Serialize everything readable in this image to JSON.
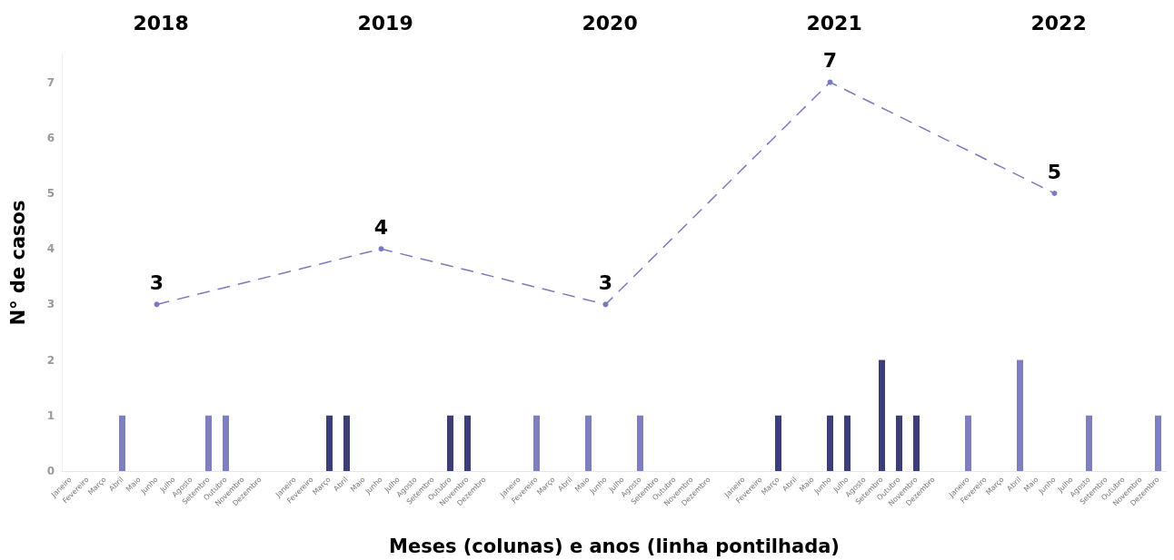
{
  "chart_data": {
    "type": "bar",
    "xlabel": "Meses (colunas) e anos (linha pontilhada)",
    "ylabel": "N° de casos",
    "annotations": [
      "2018",
      "2019",
      "2020",
      "2021",
      "2022"
    ],
    "categories": [
      "Janeiro",
      "Fevereiro",
      "Março",
      "Abril",
      "Maio",
      "Junho",
      "Julho",
      "Agosto",
      "Setembro",
      "Outubro",
      "Novembro",
      "Dezembro",
      null,
      "Janeiro",
      "Fevereiro",
      "Março",
      "Abril",
      "Maio",
      "Junho",
      "Julho",
      "Agosto",
      "Setembro",
      "Outubro",
      "Novembro",
      "Dezembro",
      null,
      "Janeiro",
      "Fevereiro",
      "Março",
      "Abril",
      "Maio",
      "Junho",
      "Julho",
      "Agosto",
      "Setembro",
      "Outubro",
      "Novembro",
      "Dezembro",
      null,
      "Janeiro",
      "Fevereiro",
      "Março",
      "Abril",
      "Maio",
      "Junho",
      "Julho",
      "Agosto",
      "Setembro",
      "Outubro",
      "Novembro",
      "Dezembro",
      null,
      "Janeiro",
      "Fevereiro",
      "Março",
      "Abril",
      "Maio",
      "Junho",
      "Julho",
      "Agosto",
      "Setembro",
      "Outubro",
      "Novembro",
      "Dezembro"
    ],
    "series": [
      {
        "values": [
          0,
          0,
          0,
          1,
          0,
          0,
          0,
          0,
          1,
          1,
          0,
          0,
          null,
          0,
          0,
          1,
          1,
          0,
          0,
          0,
          0,
          0,
          1,
          1,
          0,
          null,
          0,
          1,
          0,
          0,
          1,
          0,
          0,
          1,
          0,
          0,
          0,
          0,
          null,
          0,
          0,
          1,
          0,
          0,
          1,
          1,
          0,
          2,
          1,
          1,
          0,
          null,
          1,
          0,
          0,
          2,
          0,
          0,
          0,
          1,
          0,
          0,
          0,
          1
        ],
        "colors": [
          "#7f7fbf",
          "#7f7fbf",
          "#7f7fbf",
          "#7f7fbf",
          "#7f7fbf",
          "#7f7fbf",
          "#7f7fbf",
          "#7f7fbf",
          "#7f7fbf",
          "#7f7fbf",
          "#7f7fbf",
          "#7f7fbf",
          "#7f7fbf",
          "#3d3d78",
          "#3d3d78",
          "#3d3d78",
          "#3d3d78",
          "#3d3d78",
          "#3d3d78",
          "#3d3d78",
          "#3d3d78",
          "#3d3d78",
          "#3d3d78",
          "#3d3d78",
          "#3d3d78",
          "#3d3d78",
          "#7f7fbf",
          "#7f7fbf",
          "#7f7fbf",
          "#7f7fbf",
          "#7f7fbf",
          "#7f7fbf",
          "#7f7fbf",
          "#7f7fbf",
          "#7f7fbf",
          "#7f7fbf",
          "#7f7fbf",
          "#7f7fbf",
          "#7f7fbf",
          "#3d3d78",
          "#3d3d78",
          "#3d3d78",
          "#3d3d78",
          "#3d3d78",
          "#3d3d78",
          "#3d3d78",
          "#3d3d78",
          "#3d3d78",
          "#3d3d78",
          "#3d3d78",
          "#3d3d78",
          "#3d3d78",
          "#7f7fbf",
          "#7f7fbf",
          "#7f7fbf",
          "#7f7fbf",
          "#7f7fbf",
          "#7f7fbf",
          "#7f7fbf",
          "#7f7fbf",
          "#7f7fbf",
          "#7f7fbf",
          "#7f7fbf",
          "#7f7fbf"
        ]
      },
      {
        "type": "line",
        "color": "#7a7ac0",
        "marker": "circle",
        "line_style": "dashed",
        "values": [
          null,
          null,
          null,
          null,
          null,
          3,
          null,
          null,
          null,
          null,
          null,
          null,
          null,
          null,
          null,
          null,
          null,
          null,
          4,
          null,
          null,
          null,
          null,
          null,
          null,
          null,
          null,
          null,
          null,
          null,
          null,
          3,
          null,
          null,
          null,
          null,
          null,
          null,
          null,
          null,
          null,
          null,
          null,
          null,
          7,
          null,
          null,
          null,
          null,
          null,
          null,
          null,
          null,
          null,
          null,
          null,
          null,
          5,
          null,
          null,
          null,
          null,
          null,
          null
        ],
        "value_labels": [
          null,
          null,
          null,
          null,
          null,
          "3",
          null,
          null,
          null,
          null,
          null,
          null,
          null,
          null,
          null,
          null,
          null,
          null,
          "4",
          null,
          null,
          null,
          null,
          null,
          null,
          null,
          null,
          null,
          null,
          null,
          null,
          "3",
          null,
          null,
          null,
          null,
          null,
          null,
          null,
          null,
          null,
          null,
          null,
          null,
          "7",
          null,
          null,
          null,
          null,
          null,
          null,
          null,
          null,
          null,
          null,
          null,
          null,
          "5",
          null,
          null,
          null,
          null,
          null,
          null
        ]
      }
    ],
    "ylim": [
      0,
      7.5
    ],
    "yticks": [
      0,
      1,
      2,
      3,
      4,
      5,
      6,
      7
    ],
    "grid": false
  }
}
